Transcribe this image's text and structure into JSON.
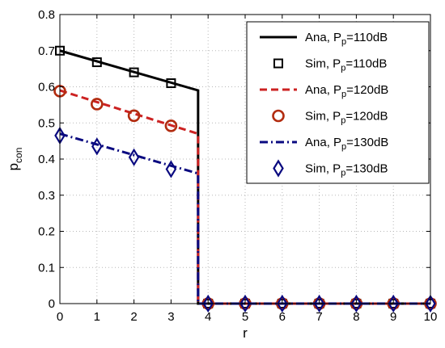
{
  "chart_data": {
    "type": "line",
    "xlabel": "r",
    "ylabel_main": "p",
    "ylabel_sub": "con",
    "xlim": [
      0,
      10
    ],
    "ylim": [
      0,
      0.8
    ],
    "xticks": [
      "0",
      "1",
      "2",
      "3",
      "4",
      "5",
      "6",
      "7",
      "8",
      "9",
      "10"
    ],
    "yticks": [
      "0",
      "0.1",
      "0.2",
      "0.3",
      "0.4",
      "0.5",
      "0.6",
      "0.7",
      "0.8"
    ],
    "grid": true,
    "legend_position": "top-right",
    "series": [
      {
        "prefix": "Ana, P",
        "sub": "p",
        "suffix": "=110dB",
        "kind": "line",
        "style": "solid",
        "color": "#000000",
        "x": [
          0,
          3.73,
          3.73,
          10
        ],
        "y": [
          0.7,
          0.59,
          0,
          0
        ]
      },
      {
        "prefix": "Sim, P",
        "sub": "p",
        "suffix": "=110dB",
        "kind": "marker",
        "marker": "square",
        "color": "#000000",
        "x": [
          0,
          1,
          2,
          3,
          4,
          5,
          6,
          7,
          8,
          9,
          10
        ],
        "y": [
          0.7,
          0.668,
          0.64,
          0.61,
          0,
          0,
          0,
          0,
          0,
          0,
          0
        ]
      },
      {
        "prefix": "Ana, P",
        "sub": "p",
        "suffix": "=120dB",
        "kind": "line",
        "style": "dashed",
        "color": "#cc2222",
        "x": [
          0,
          3.73,
          3.73,
          10
        ],
        "y": [
          0.59,
          0.47,
          0,
          0
        ]
      },
      {
        "prefix": "Sim, P",
        "sub": "p",
        "suffix": "=120dB",
        "kind": "marker",
        "marker": "circle",
        "color": "#b22c10",
        "x": [
          0,
          1,
          2,
          3,
          4,
          5,
          6,
          7,
          8,
          9,
          10
        ],
        "y": [
          0.588,
          0.552,
          0.52,
          0.492,
          0,
          0,
          0,
          0,
          0,
          0,
          0
        ]
      },
      {
        "prefix": "Ana, P",
        "sub": "p",
        "suffix": "=130dB",
        "kind": "line",
        "style": "dashdot",
        "color": "#0a0a80",
        "x": [
          0,
          3.73,
          3.73,
          10
        ],
        "y": [
          0.47,
          0.36,
          0,
          0
        ]
      },
      {
        "prefix": "Sim, P",
        "sub": "p",
        "suffix": "=130dB",
        "kind": "marker",
        "marker": "diamond",
        "color": "#0a0a80",
        "x": [
          0,
          1,
          2,
          3,
          4,
          5,
          6,
          7,
          8,
          9,
          10
        ],
        "y": [
          0.465,
          0.435,
          0.405,
          0.372,
          0,
          0,
          0,
          0,
          0,
          0,
          0
        ]
      }
    ]
  }
}
